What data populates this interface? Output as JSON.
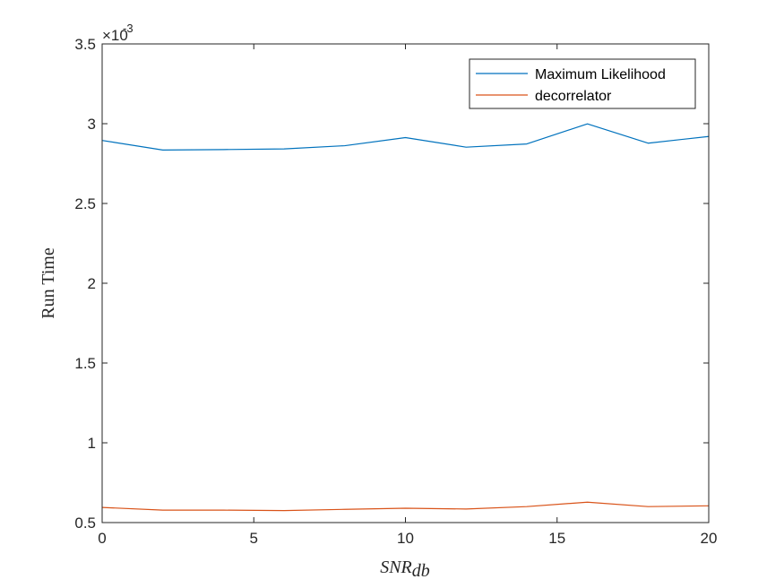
{
  "chart_data": {
    "type": "line",
    "x": [
      0,
      2,
      4,
      6,
      8,
      10,
      12,
      14,
      16,
      18,
      20
    ],
    "series": [
      {
        "name": "Maximum Likelihood",
        "color": "#0072BD",
        "values": [
          2.895,
          2.835,
          2.838,
          2.842,
          2.862,
          2.913,
          2.853,
          2.873,
          2.999,
          2.878,
          2.92
        ]
      },
      {
        "name": "decorrelator",
        "color": "#D95319",
        "values": [
          0.595,
          0.578,
          0.578,
          0.575,
          0.583,
          0.59,
          0.585,
          0.6,
          0.628,
          0.6,
          0.605
        ]
      }
    ],
    "xlabel_main": "SNR",
    "xlabel_sub": "db",
    "ylabel": "Run Time",
    "xlim": [
      0,
      20
    ],
    "ylim": [
      0.5,
      3.5
    ],
    "xticks": [
      0,
      5,
      10,
      15,
      20
    ],
    "yticks": [
      0.5,
      1,
      1.5,
      2,
      2.5,
      3,
      3.5
    ],
    "xtick_labels": [
      "0",
      "5",
      "10",
      "15",
      "20"
    ],
    "ytick_labels": [
      "0.5",
      "1",
      "1.5",
      "2",
      "2.5",
      "3",
      "3.5"
    ],
    "y_scale_base": "×10",
    "y_scale_exponent": "-3",
    "grid": false,
    "legend_position": "top-right"
  }
}
